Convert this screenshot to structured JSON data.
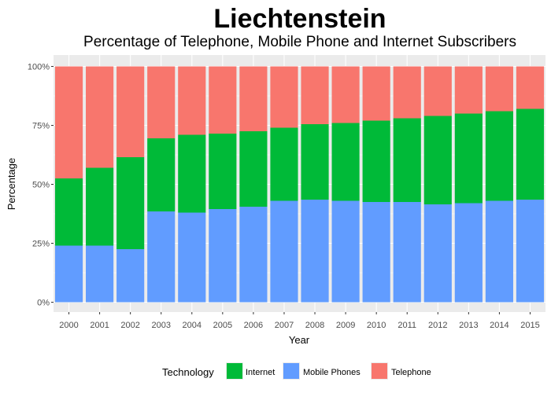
{
  "chart_data": {
    "type": "bar",
    "stacked": "percent",
    "title": "Liechtenstein",
    "subtitle": "Percentage of Telephone, Mobile Phone and Internet Subscribers",
    "xlabel": "Year",
    "ylabel": "Percentage",
    "ylim": [
      0,
      1
    ],
    "yticks": [
      "0%",
      "25%",
      "50%",
      "75%",
      "100%"
    ],
    "grid": true,
    "legend_position": "bottom",
    "legend_title": "Technology",
    "categories": [
      "2000",
      "2001",
      "2002",
      "2003",
      "2004",
      "2005",
      "2006",
      "2007",
      "2008",
      "2009",
      "2010",
      "2011",
      "2012",
      "2013",
      "2014",
      "2015"
    ],
    "series": [
      {
        "name": "Mobile Phones",
        "color": "#619CFF",
        "values": [
          0.24,
          0.24,
          0.225,
          0.385,
          0.38,
          0.395,
          0.405,
          0.43,
          0.435,
          0.43,
          0.425,
          0.425,
          0.415,
          0.42,
          0.43,
          0.435
        ]
      },
      {
        "name": "Internet",
        "color": "#00BA38",
        "values": [
          0.285,
          0.33,
          0.39,
          0.31,
          0.33,
          0.32,
          0.32,
          0.31,
          0.32,
          0.33,
          0.345,
          0.355,
          0.375,
          0.38,
          0.38,
          0.385
        ]
      },
      {
        "name": "Telephone",
        "color": "#F8766D",
        "values": [
          0.475,
          0.43,
          0.385,
          0.305,
          0.29,
          0.285,
          0.275,
          0.26,
          0.245,
          0.24,
          0.23,
          0.22,
          0.21,
          0.2,
          0.19,
          0.18
        ]
      }
    ],
    "legend_order": [
      "Internet",
      "Mobile Phones",
      "Telephone"
    ]
  },
  "colors": {
    "panel": "#EBEBEB",
    "grid_major": "#FFFFFF",
    "tick_text": "#4D4D4D"
  }
}
